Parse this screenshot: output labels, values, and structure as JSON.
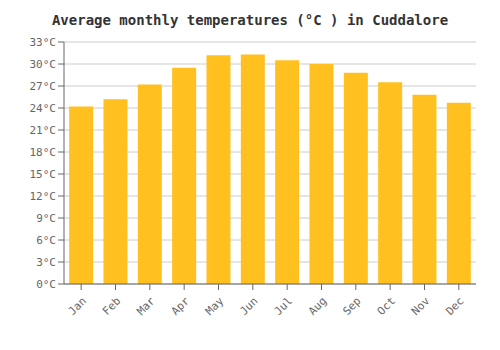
{
  "chart_data": {
    "type": "bar",
    "title": "Average monthly temperatures (°C ) in Cuddalore",
    "categories": [
      "Jan",
      "Feb",
      "Mar",
      "Apr",
      "May",
      "Jun",
      "Jul",
      "Aug",
      "Sep",
      "Oct",
      "Nov",
      "Dec"
    ],
    "values": [
      24.2,
      25.2,
      27.2,
      29.5,
      31.2,
      31.3,
      30.5,
      30.0,
      28.8,
      27.5,
      25.8,
      24.7
    ],
    "color": "#FFC020",
    "ylim": [
      0,
      33
    ],
    "yticks": [
      {
        "value": 0,
        "label": "0°C"
      },
      {
        "value": 3,
        "label": "3°C"
      },
      {
        "value": 6,
        "label": "6°C"
      },
      {
        "value": 9,
        "label": "9°C"
      },
      {
        "value": 12,
        "label": "12°C"
      },
      {
        "value": 15,
        "label": "15°C"
      },
      {
        "value": 18,
        "label": "18°C"
      },
      {
        "value": 21,
        "label": "21°C"
      },
      {
        "value": 24,
        "label": "24°C"
      },
      {
        "value": 27,
        "label": "27°C"
      },
      {
        "value": 30,
        "label": "30°C"
      },
      {
        "value": 33,
        "label": "33°C"
      }
    ],
    "grid": true
  }
}
